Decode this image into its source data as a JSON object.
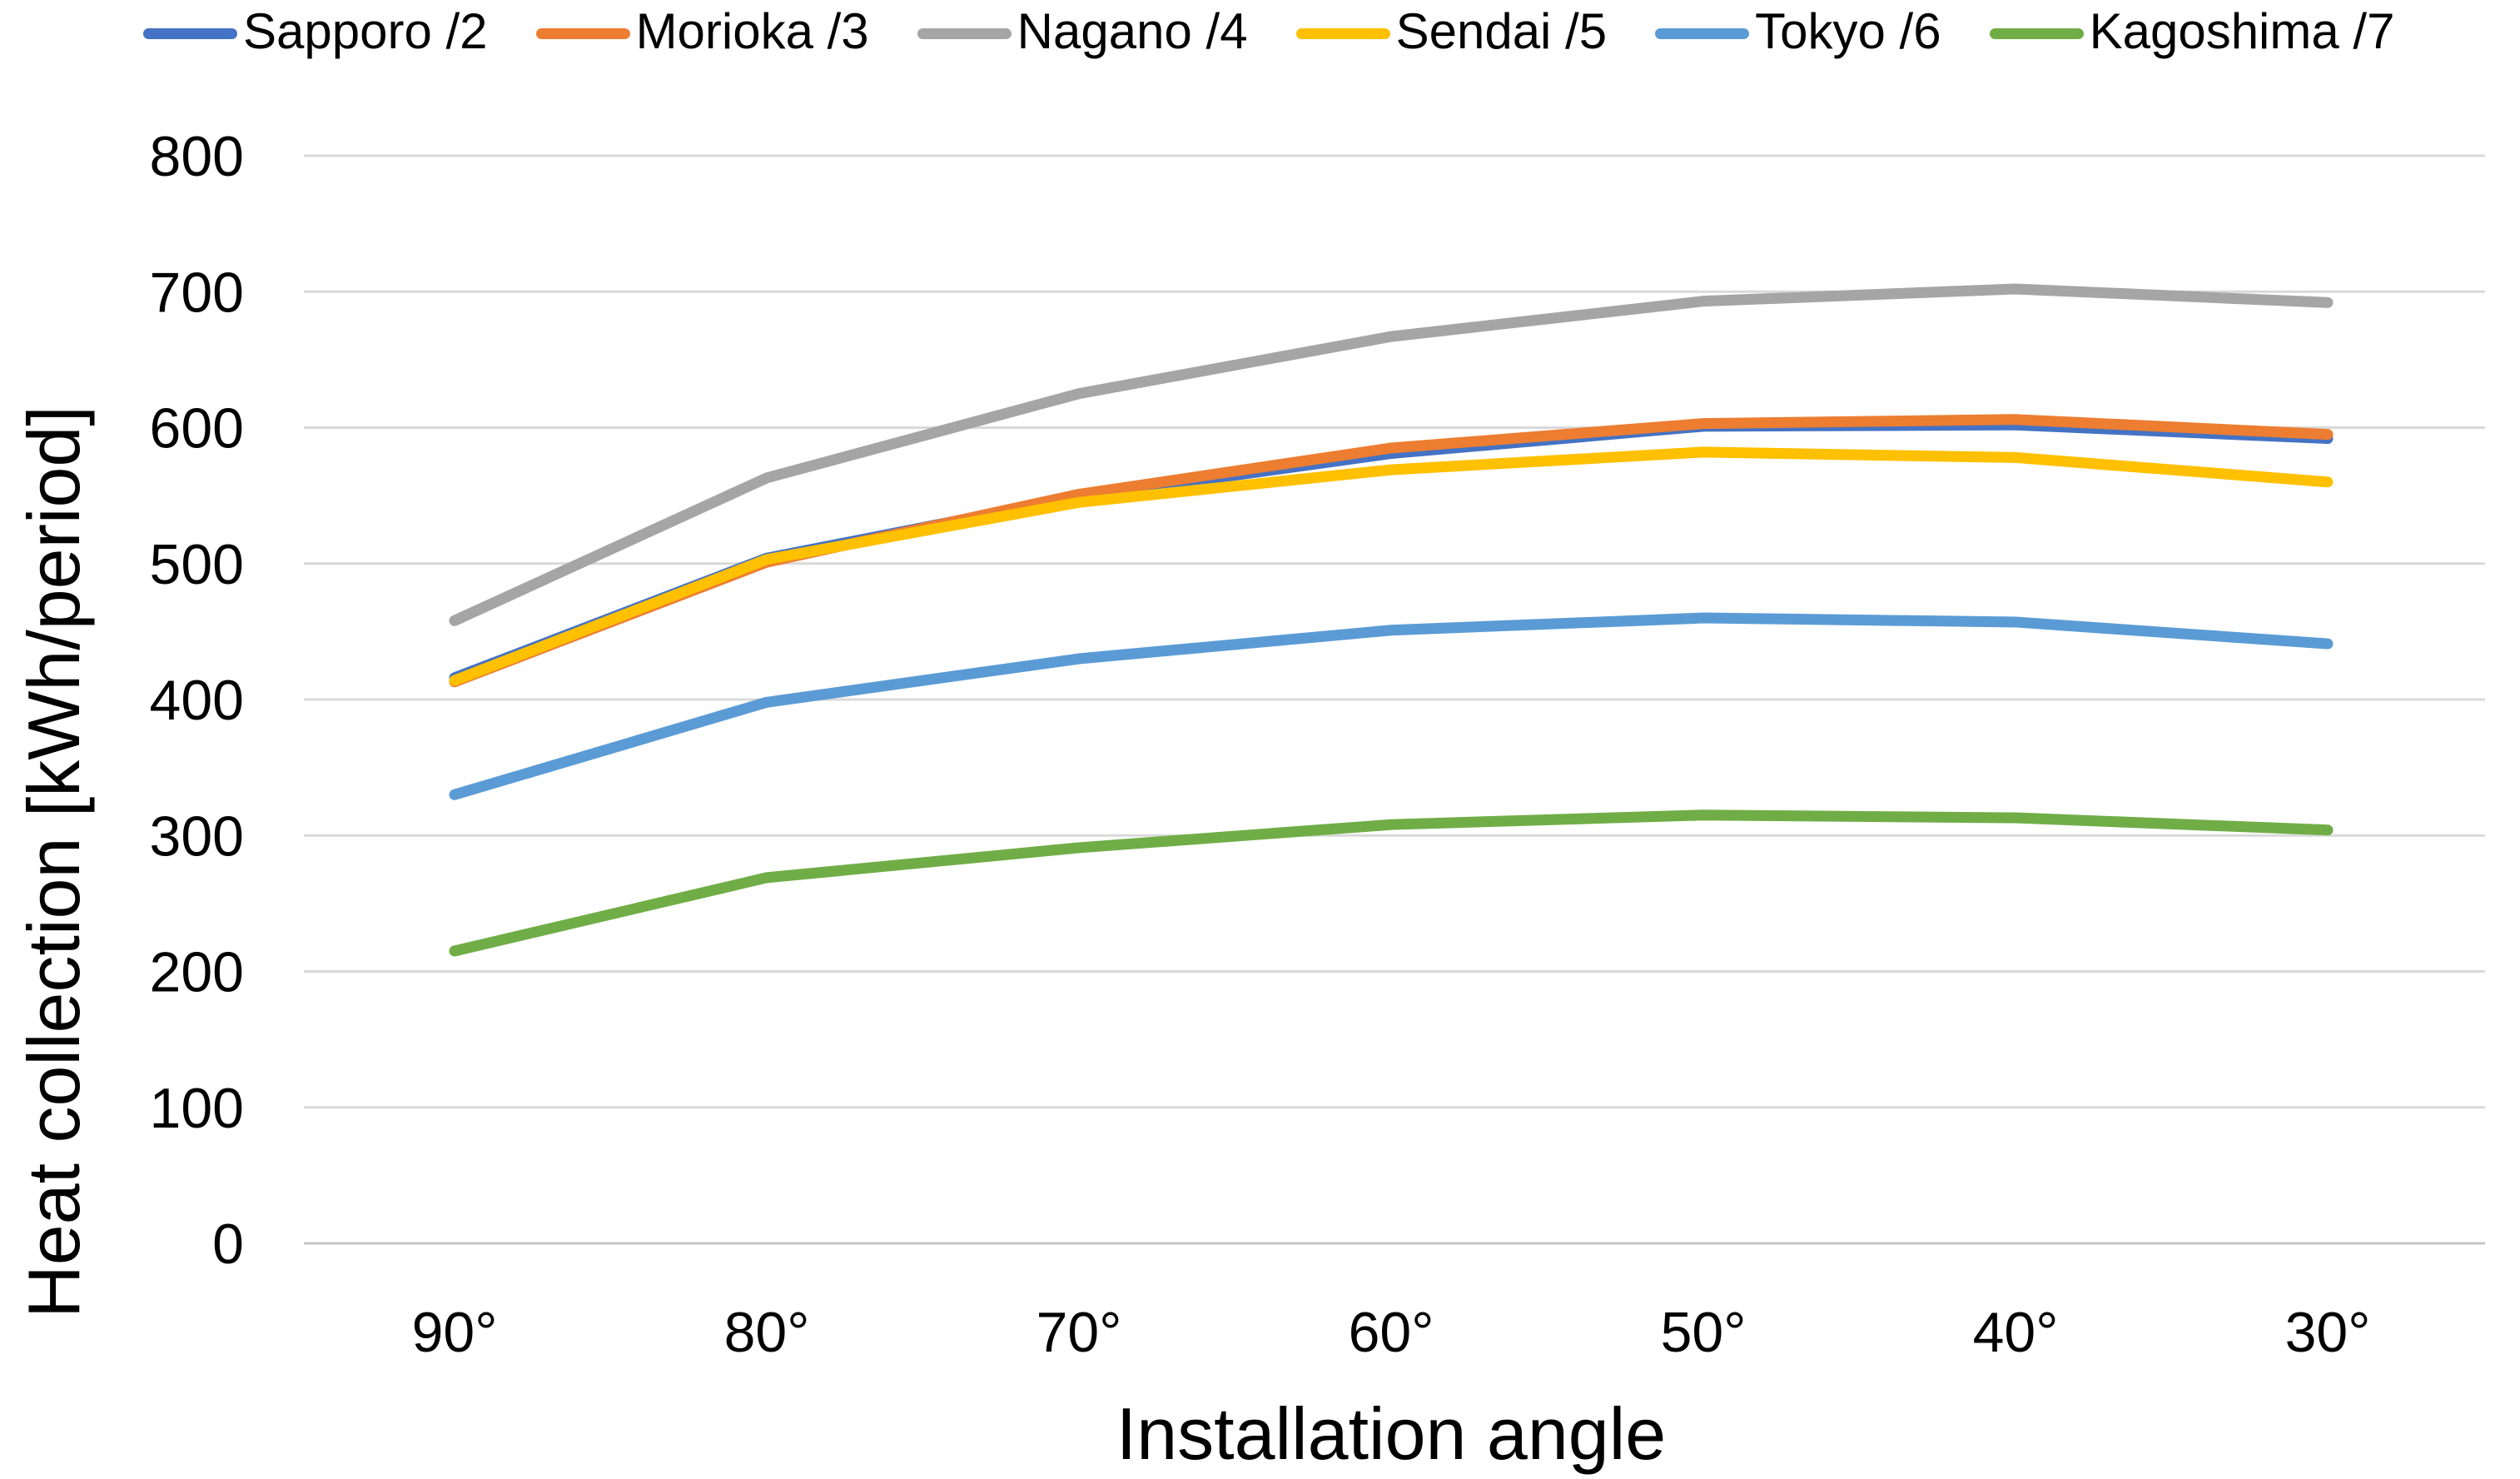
{
  "chart_data": {
    "type": "line",
    "title": "",
    "xlabel": "Installation angle",
    "ylabel": "Heat collection [kWh/period]",
    "categories": [
      "90°",
      "80°",
      "70°",
      "60°",
      "50°",
      "40°",
      "30°"
    ],
    "series": [
      {
        "name": "Sapporo /2",
        "color": "#4472C4",
        "values": [
          416,
          504,
          549,
          581,
          601,
          602,
          592
        ]
      },
      {
        "name": "Morioka /3",
        "color": "#ED7D31",
        "values": [
          413,
          501,
          551,
          585,
          603,
          606,
          595
        ]
      },
      {
        "name": "Nagano /4",
        "color": "#A5A5A5",
        "values": [
          458,
          563,
          625,
          667,
          693,
          702,
          692
        ]
      },
      {
        "name": "Sendai /5",
        "color": "#FFC000",
        "values": [
          414,
          503,
          545,
          569,
          582,
          578,
          560
        ]
      },
      {
        "name": "Tokyo /6",
        "color": "#5B9BD5",
        "values": [
          330,
          398,
          430,
          451,
          460,
          457,
          441
        ]
      },
      {
        "name": "Kagoshima /7",
        "color": "#70AD47",
        "values": [
          215,
          269,
          291,
          308,
          315,
          313,
          304
        ]
      }
    ],
    "ylim": [
      0,
      800
    ],
    "ytick_step": 100,
    "ytick_labels": [
      "0",
      "100",
      "200",
      "300",
      "400",
      "500",
      "600",
      "700",
      "800"
    ],
    "grid": true,
    "gridline_color": "#D9D9D9",
    "axis_line_color": "#C6C6C6",
    "legend_position": "top",
    "text_color": "#000000",
    "background": "#FFFFFF"
  }
}
